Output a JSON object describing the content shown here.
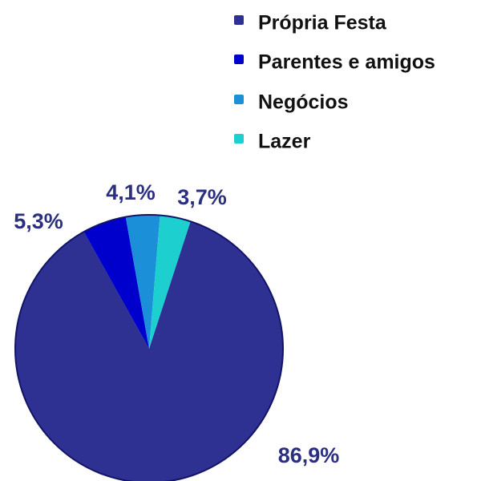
{
  "chart_data": {
    "type": "pie",
    "categories": [
      "Própria Festa",
      "Parentes e amigos",
      "Negócios",
      "Lazer"
    ],
    "values": [
      86.9,
      5.3,
      4.1,
      3.7
    ],
    "value_labels": [
      "86,9%",
      "5,3%",
      "4,1%",
      "3,7%"
    ],
    "colors": [
      "#2e3192",
      "#0000cc",
      "#1b8fd8",
      "#1dcfcf"
    ],
    "legend": "upper right"
  }
}
